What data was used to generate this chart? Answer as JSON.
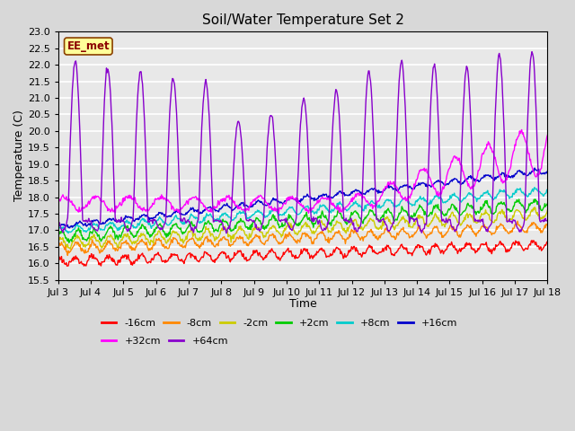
{
  "title": "Soil/Water Temperature Set 2",
  "xlabel": "Time",
  "ylabel": "Temperature (C)",
  "ylim": [
    15.5,
    23.0
  ],
  "series_colors": {
    "-16cm": "#ff0000",
    "-8cm": "#ff8800",
    "-2cm": "#cccc00",
    "+2cm": "#00cc00",
    "+8cm": "#00cccc",
    "+16cm": "#0000cc",
    "+32cm": "#ff00ff",
    "+64cm": "#8800cc"
  },
  "bg_color": "#d8d8d8",
  "plot_bg": "#e8e8e8",
  "watermark_text": "EE_met",
  "watermark_fgcolor": "#8B0000",
  "watermark_bgcolor": "#ffff99",
  "watermark_edgecolor": "#8B4000"
}
